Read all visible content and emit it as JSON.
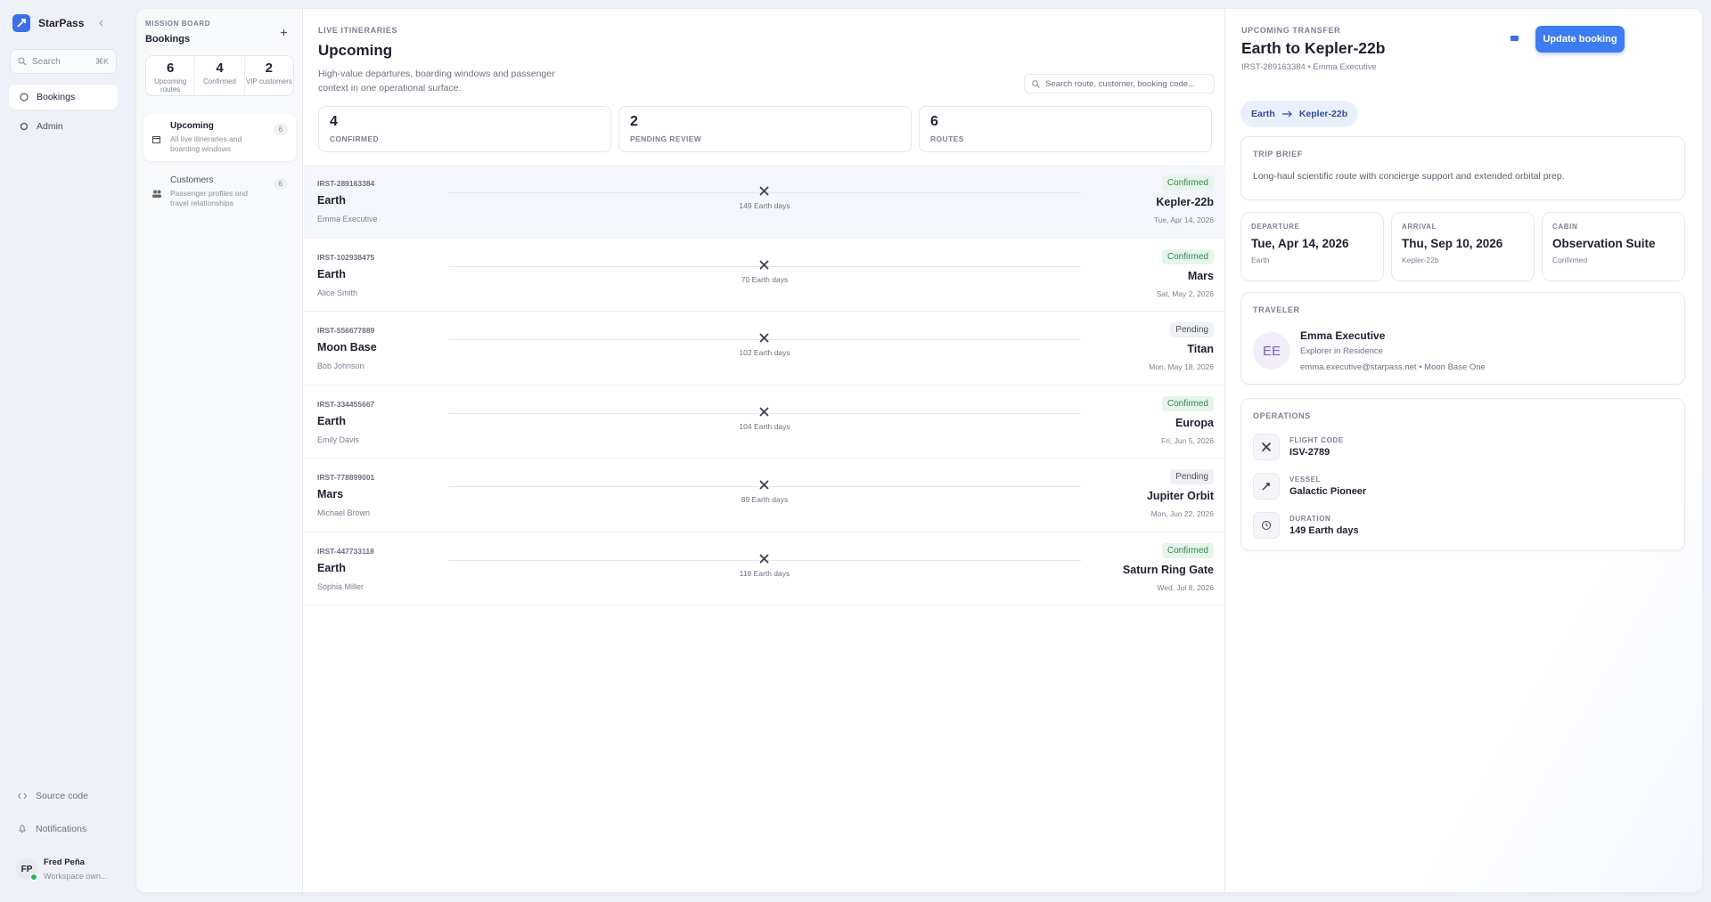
{
  "sidebar": {
    "brand": "StarPass",
    "search_placeholder": "Search",
    "search_shortcut": "⌘K",
    "nav": [
      "Bookings",
      "Admin"
    ],
    "footer_links": [
      "Source code",
      "Notifications"
    ],
    "user": {
      "initials": "FP",
      "name": "Fred Peña",
      "role": "Workspace own..."
    }
  },
  "board": {
    "eyebrow": "MISSION BOARD",
    "title": "Bookings",
    "stats": [
      {
        "value": 6,
        "label": "Upcoming routes"
      },
      {
        "value": 4,
        "label": "Confirmed"
      },
      {
        "value": 2,
        "label": "VIP customers"
      }
    ],
    "views": [
      {
        "title": "Upcoming",
        "description": "All live itineraries and boarding windows",
        "count": 6
      },
      {
        "title": "Customers",
        "description": "Passenger profiles and travel relationships",
        "count": 6
      }
    ]
  },
  "itineraries": {
    "eyebrow": "LIVE ITINERARIES",
    "title": "Upcoming",
    "description": "High-value departures, boarding windows and passenger context in one operational surface.",
    "search_placeholder": "Search route, customer, booking code...",
    "summary": [
      {
        "value": 4,
        "label": "CONFIRMED"
      },
      {
        "value": 2,
        "label": "PENDING REVIEW"
      },
      {
        "value": 6,
        "label": "ROUTES"
      }
    ],
    "rows": [
      {
        "code": "IRST-289163384",
        "origin": "Earth",
        "customer": "Emma Executive",
        "duration": "149 Earth days",
        "status": "Confirmed",
        "status_color": "#2f8a4c",
        "status_bg": "#e6f4ea",
        "destination": "Kepler-22b",
        "date": "Tue, Apr 14, 2026"
      },
      {
        "code": "IRST-102938475",
        "origin": "Earth",
        "customer": "Alice Smith",
        "duration": "70 Earth days",
        "status": "Confirmed",
        "status_color": "#2f8a4c",
        "status_bg": "#e6f4ea",
        "destination": "Mars",
        "date": "Sat, May 2, 2026"
      },
      {
        "code": "IRST-556677889",
        "origin": "Moon Base",
        "customer": "Bob Johnson",
        "duration": "102 Earth days",
        "status": "Pending",
        "status_color": "#4b5060",
        "status_bg": "#eef0f3",
        "destination": "Titan",
        "date": "Mon, May 18, 2026"
      },
      {
        "code": "IRST-334455667",
        "origin": "Earth",
        "customer": "Emily Davis",
        "duration": "104 Earth days",
        "status": "Confirmed",
        "status_color": "#2f8a4c",
        "status_bg": "#e6f4ea",
        "destination": "Europa",
        "date": "Fri, Jun 5, 2026"
      },
      {
        "code": "IRST-778899001",
        "origin": "Mars",
        "customer": "Michael Brown",
        "duration": "89 Earth days",
        "status": "Pending",
        "status_color": "#4b5060",
        "status_bg": "#eef0f3",
        "destination": "Jupiter Orbit",
        "date": "Mon, Jun 22, 2026"
      },
      {
        "code": "IRST-447733118",
        "origin": "Earth",
        "customer": "Sophia Miller",
        "duration": "118 Earth days",
        "status": "Confirmed",
        "status_color": "#2f8a4c",
        "status_bg": "#e6f4ea",
        "destination": "Saturn Ring Gate",
        "date": "Wed, Jul 8, 2026"
      }
    ]
  },
  "detail": {
    "eyebrow": "UPCOMING TRANSFER",
    "title": "Earth to Kepler-22b",
    "subtitle": "IRST-289163384 • Emma Executive",
    "button": "Update booking",
    "route": [
      "Earth",
      "Kepler-22b"
    ],
    "trip_brief": {
      "label": "TRIP BRIEF",
      "text": "Long-haul scientific route with concierge support and extended orbital prep."
    },
    "facts": [
      {
        "label": "DEPARTURE",
        "value": "Tue, Apr 14, 2026",
        "sub": "Earth"
      },
      {
        "label": "ARRIVAL",
        "value": "Thu, Sep 10, 2026",
        "sub": "Kepler-22b"
      },
      {
        "label": "CABIN",
        "value": "Observation Suite",
        "sub": "Confirmed"
      }
    ],
    "traveler": {
      "label": "TRAVELER",
      "initials": "EE",
      "name": "Emma Executive",
      "role": "Explorer in Residence",
      "contact": "emma.executive@starpass.net • Moon Base One"
    },
    "operations": {
      "label": "OPERATIONS",
      "items": [
        {
          "label": "FLIGHT CODE",
          "value": "ISV-2789"
        },
        {
          "label": "VESSEL",
          "value": "Galactic Pioneer"
        },
        {
          "label": "DURATION",
          "value": "149 Earth days"
        }
      ]
    }
  }
}
